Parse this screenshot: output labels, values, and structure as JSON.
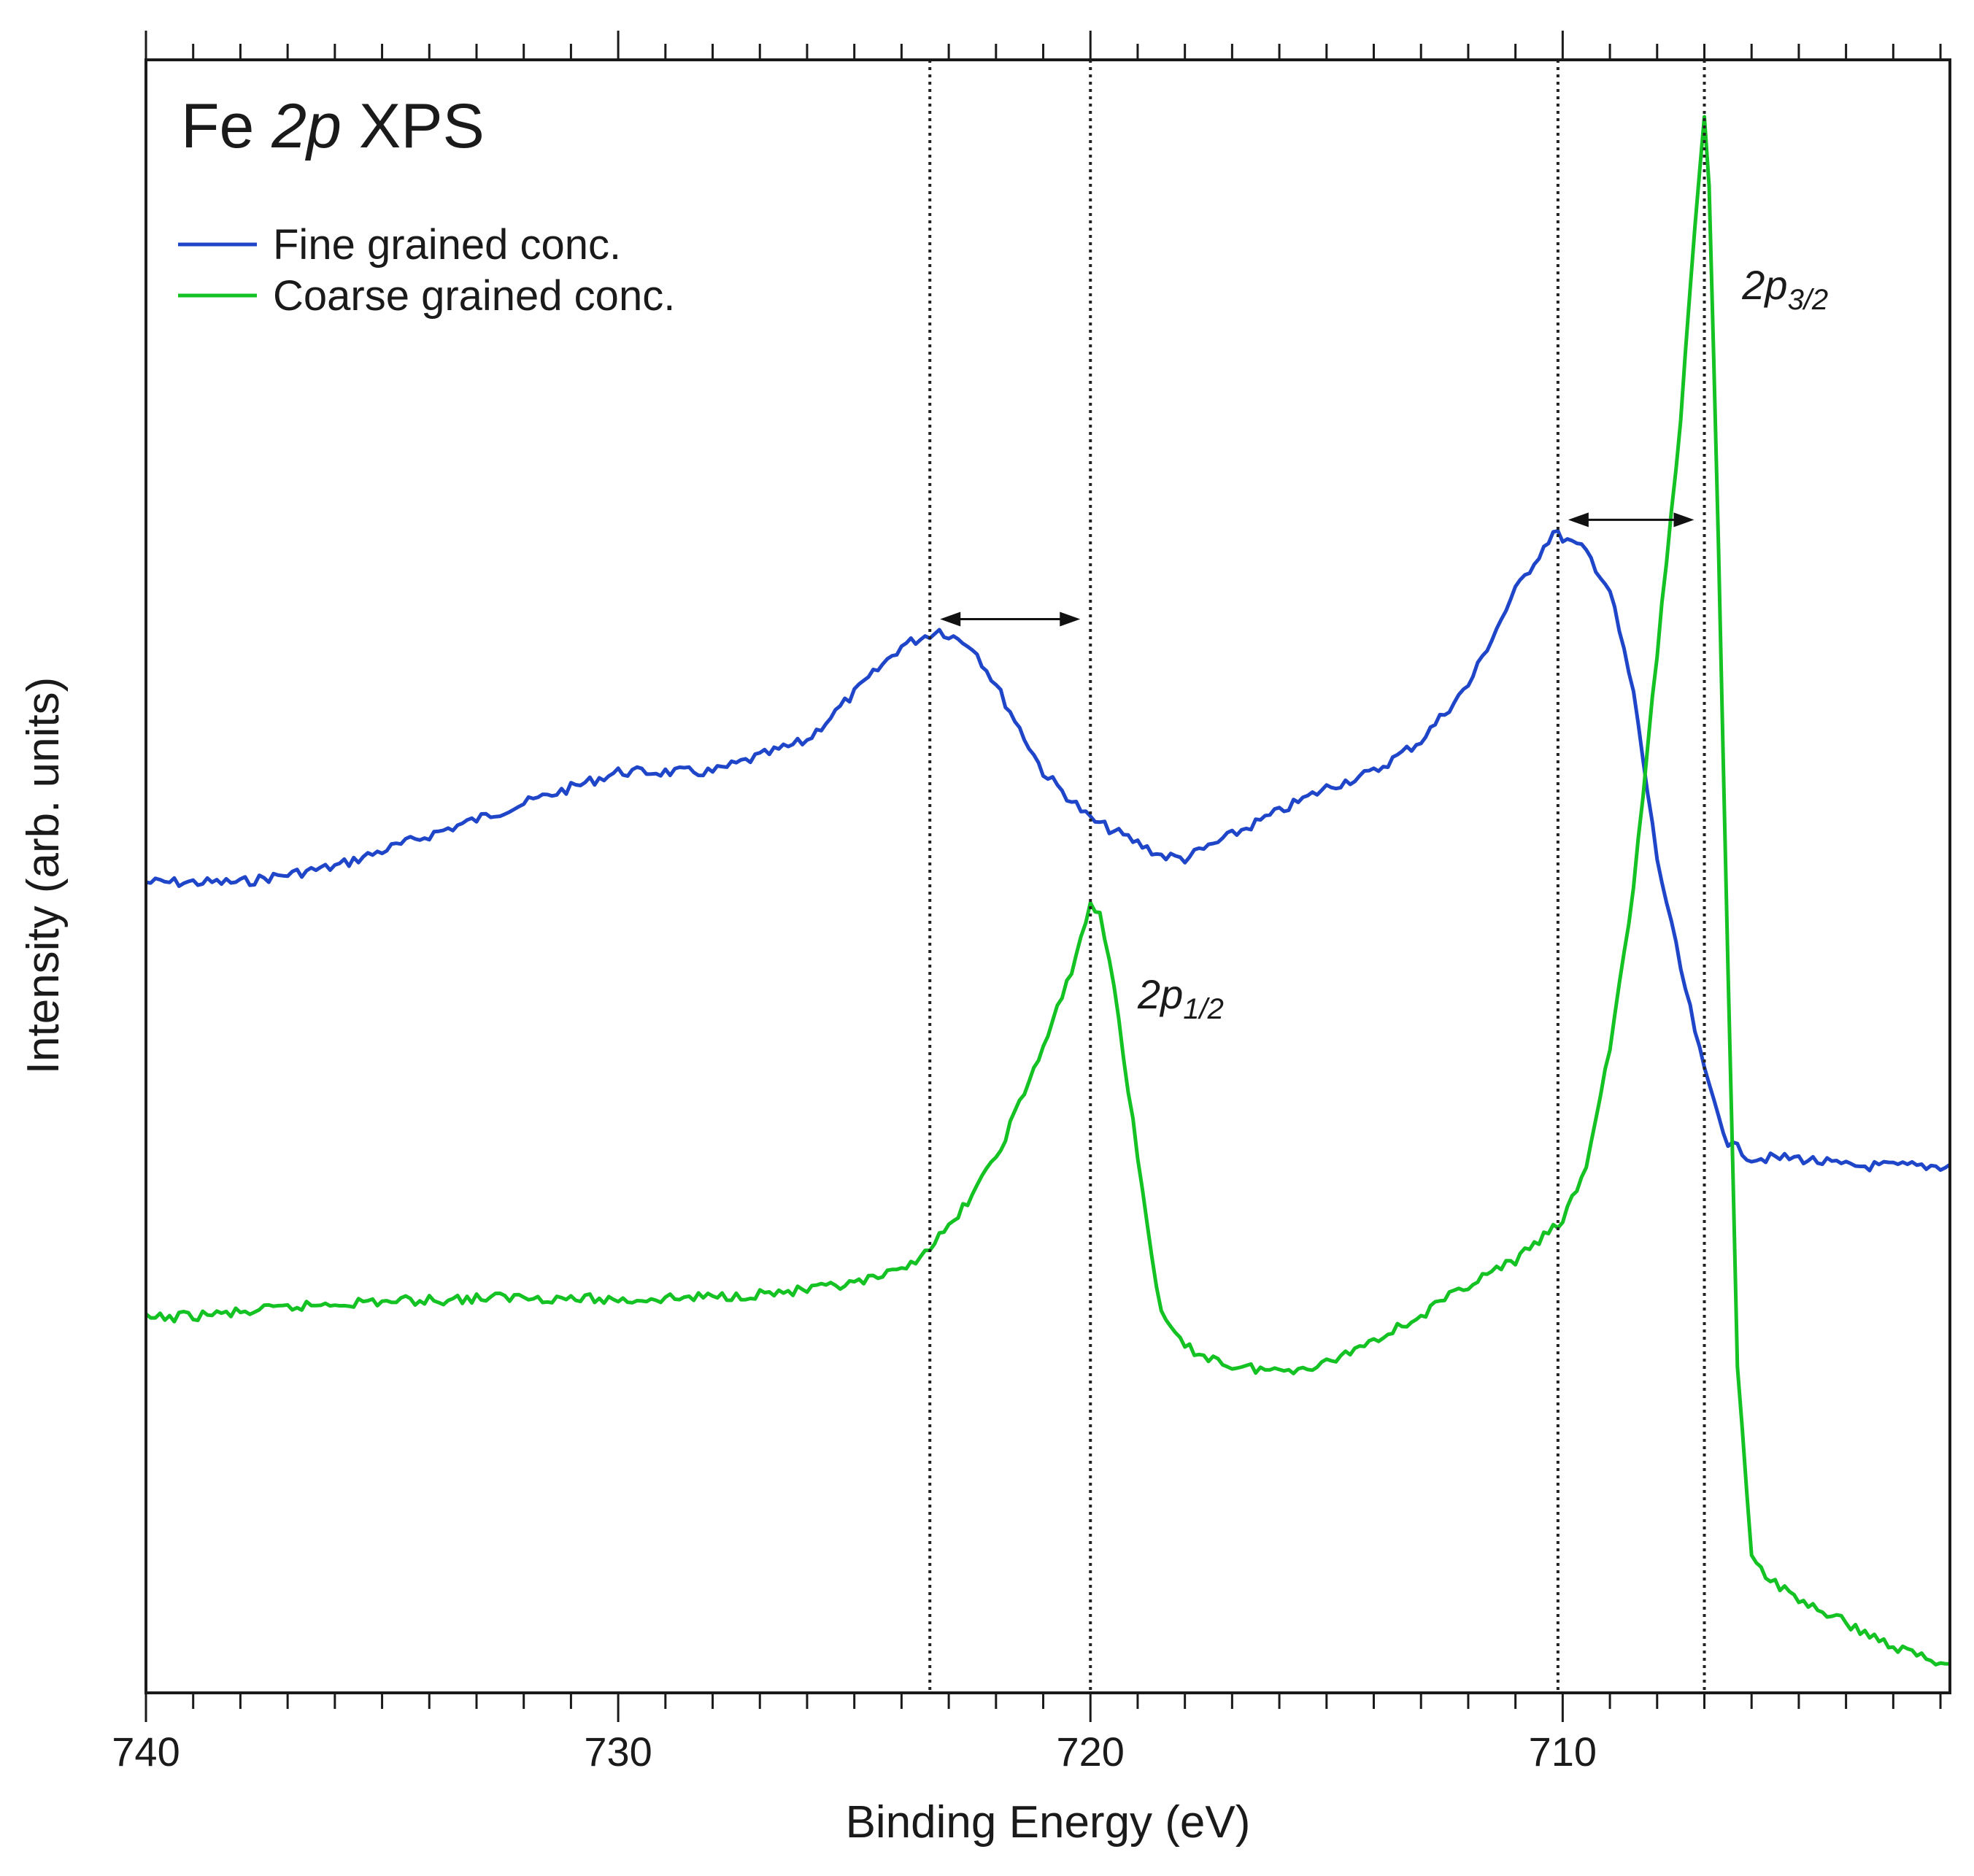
{
  "chart_data": {
    "type": "line",
    "title": {
      "prefix": "Fe ",
      "italic": "2p",
      "suffix": " XPS"
    },
    "xlabel": "Binding Energy (eV)",
    "ylabel": "Intensity (arb. units)",
    "x_reversed": true,
    "xlim": [
      740,
      701.8
    ],
    "ylim": [
      0,
      1.0
    ],
    "x_ticks": [
      "740",
      "730",
      "720",
      "710"
    ],
    "x_tick_values": [
      740,
      730,
      720,
      710
    ],
    "minor_tick_step": 1,
    "grid": false,
    "legend_position": "top-left",
    "series": [
      {
        "name": "Fine grained conc.",
        "color": "#1f45c8",
        "points": [
          [
            740,
            0.505
          ],
          [
            738,
            0.505
          ],
          [
            736,
            0.515
          ],
          [
            734,
            0.535
          ],
          [
            732,
            0.555
          ],
          [
            730,
            0.575
          ],
          [
            728,
            0.575
          ],
          [
            726,
            0.595
          ],
          [
            725,
            0.625
          ],
          [
            724,
            0.655
          ],
          [
            723.2,
            0.665
          ],
          [
            722.5,
            0.655
          ],
          [
            722,
            0.63
          ],
          [
            721,
            0.575
          ],
          [
            720,
            0.545
          ],
          [
            719,
            0.53
          ],
          [
            718.5,
            0.522
          ],
          [
            718,
            0.52
          ],
          [
            717,
            0.535
          ],
          [
            716,
            0.55
          ],
          [
            715,
            0.565
          ],
          [
            714,
            0.575
          ],
          [
            713,
            0.595
          ],
          [
            712,
            0.63
          ],
          [
            711,
            0.69
          ],
          [
            710.2,
            0.727
          ],
          [
            709.5,
            0.715
          ],
          [
            709,
            0.69
          ],
          [
            708.5,
            0.625
          ],
          [
            708,
            0.52
          ],
          [
            707.5,
            0.45
          ],
          [
            707,
            0.385
          ],
          [
            706.5,
            0.34
          ],
          [
            706,
            0.33
          ],
          [
            705,
            0.33
          ],
          [
            704,
            0.325
          ],
          [
            703,
            0.325
          ],
          [
            702,
            0.325
          ],
          [
            701.8,
            0.325
          ]
        ]
      },
      {
        "name": "Coarse grained conc.",
        "color": "#14c224",
        "points": [
          [
            740,
            0.228
          ],
          [
            738,
            0.232
          ],
          [
            736,
            0.238
          ],
          [
            734,
            0.24
          ],
          [
            732,
            0.242
          ],
          [
            730,
            0.24
          ],
          [
            728,
            0.242
          ],
          [
            726,
            0.246
          ],
          [
            725,
            0.25
          ],
          [
            724,
            0.258
          ],
          [
            723,
            0.285
          ],
          [
            722,
            0.33
          ],
          [
            721,
            0.4
          ],
          [
            720.5,
            0.44
          ],
          [
            720,
            0.49
          ],
          [
            719.8,
            0.485
          ],
          [
            719.5,
            0.44
          ],
          [
            719,
            0.33
          ],
          [
            718.5,
            0.23
          ],
          [
            718,
            0.21
          ],
          [
            717,
            0.198
          ],
          [
            716,
            0.195
          ],
          [
            715,
            0.2
          ],
          [
            714,
            0.215
          ],
          [
            713,
            0.23
          ],
          [
            712,
            0.25
          ],
          [
            711,
            0.265
          ],
          [
            710,
            0.29
          ],
          [
            709.5,
            0.325
          ],
          [
            709,
            0.4
          ],
          [
            708.5,
            0.5
          ],
          [
            708,
            0.65
          ],
          [
            707.5,
            0.8
          ],
          [
            707.2,
            0.92
          ],
          [
            707,
            0.99
          ],
          [
            706.9,
            0.95
          ],
          [
            706.7,
            0.72
          ],
          [
            706.5,
            0.45
          ],
          [
            706.3,
            0.2
          ],
          [
            706,
            0.075
          ],
          [
            705.5,
            0.06
          ],
          [
            705,
            0.05
          ],
          [
            704,
            0.035
          ],
          [
            703,
            0.02
          ],
          [
            702,
            0.01
          ],
          [
            701.8,
            0.01
          ]
        ]
      }
    ],
    "reference_lines_eV": [
      723.4,
      720.0,
      710.1,
      707.0
    ],
    "shift_arrows": [
      {
        "from": 723.4,
        "to": 720.0,
        "y": 0.672
      },
      {
        "from": 710.1,
        "to": 707.0,
        "y": 0.735
      }
    ],
    "annotations": [
      {
        "base": "2p",
        "subscript": "3/2",
        "x": 706.2,
        "y": 0.875
      },
      {
        "base": "2p",
        "subscript": "1/2",
        "x": 719.0,
        "y": 0.425
      }
    ]
  }
}
